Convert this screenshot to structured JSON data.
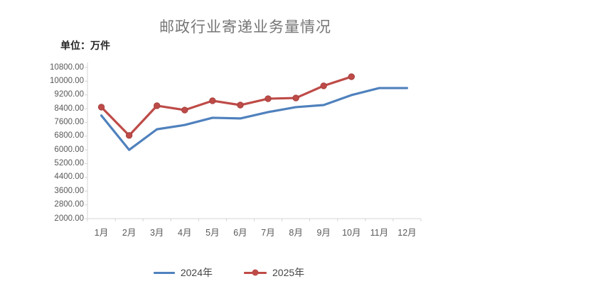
{
  "chart_data": {
    "type": "line",
    "title": "邮政行业寄递业务量情况",
    "unit_label": "单位：万件",
    "categories": [
      "1月",
      "2月",
      "3月",
      "4月",
      "5月",
      "6月",
      "7月",
      "8月",
      "9月",
      "10月",
      "11月",
      "12月"
    ],
    "series": [
      {
        "name": "2024年",
        "color": "#4F81BD",
        "marker": "none",
        "values": [
          8000,
          6000,
          7200,
          7450,
          7870,
          7830,
          8200,
          8490,
          8610,
          9190,
          9600,
          9600
        ]
      },
      {
        "name": "2025年",
        "color": "#BE4B48",
        "marker": "circle",
        "marker_edge_color": "#A5403E",
        "values": [
          8490,
          6840,
          8570,
          8320,
          8860,
          8610,
          8980,
          9020,
          9730,
          10260,
          null,
          null
        ]
      }
    ],
    "ylim": [
      2000,
      10800
    ],
    "y_tick_step": 800,
    "y_tick_decimals": 2,
    "grid": "off",
    "legend_position": "bottom",
    "axis_color": "#D5D5D5",
    "label_color": "#595959"
  }
}
